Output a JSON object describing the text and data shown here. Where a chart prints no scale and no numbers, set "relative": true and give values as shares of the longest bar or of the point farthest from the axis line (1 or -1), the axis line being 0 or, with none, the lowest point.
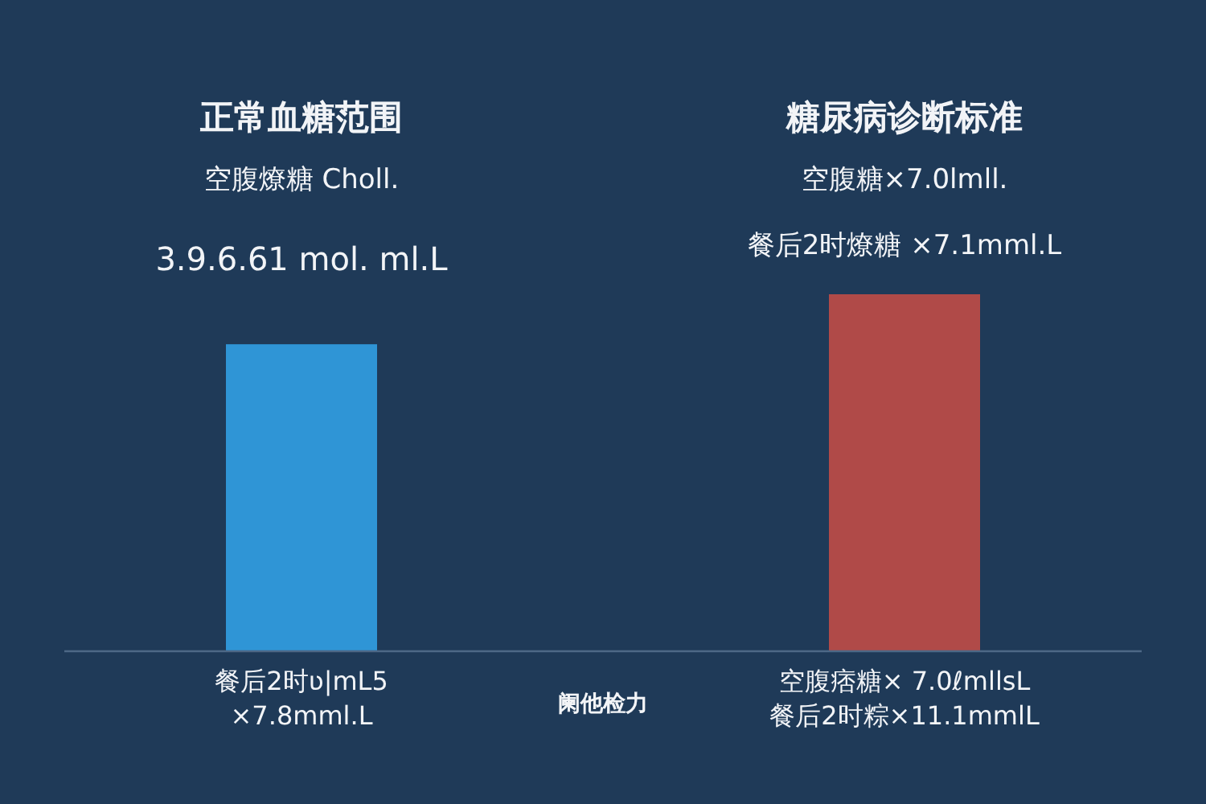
{
  "chart_data": {
    "type": "bar",
    "relative": true,
    "categories": [
      "餐后2时ʋ|mL5\n×7.8mml.L",
      "空腹痞糖× 7.0ℓmllsL\n餐后2时粽×11.1mmlL"
    ],
    "values": [
      0.86,
      1
    ],
    "colors": [
      "#2f95d6",
      "#b04a48"
    ],
    "annotations": [
      "正常血糖范围",
      "空腹燎糖 Choll.",
      "3.9.6.61 mol. ml.L",
      "糖尿病诊断标准",
      "空腹糖×7.0lmll.",
      "餐后2时燎糖 ×7.1mml.L",
      "阑他检力"
    ]
  }
}
